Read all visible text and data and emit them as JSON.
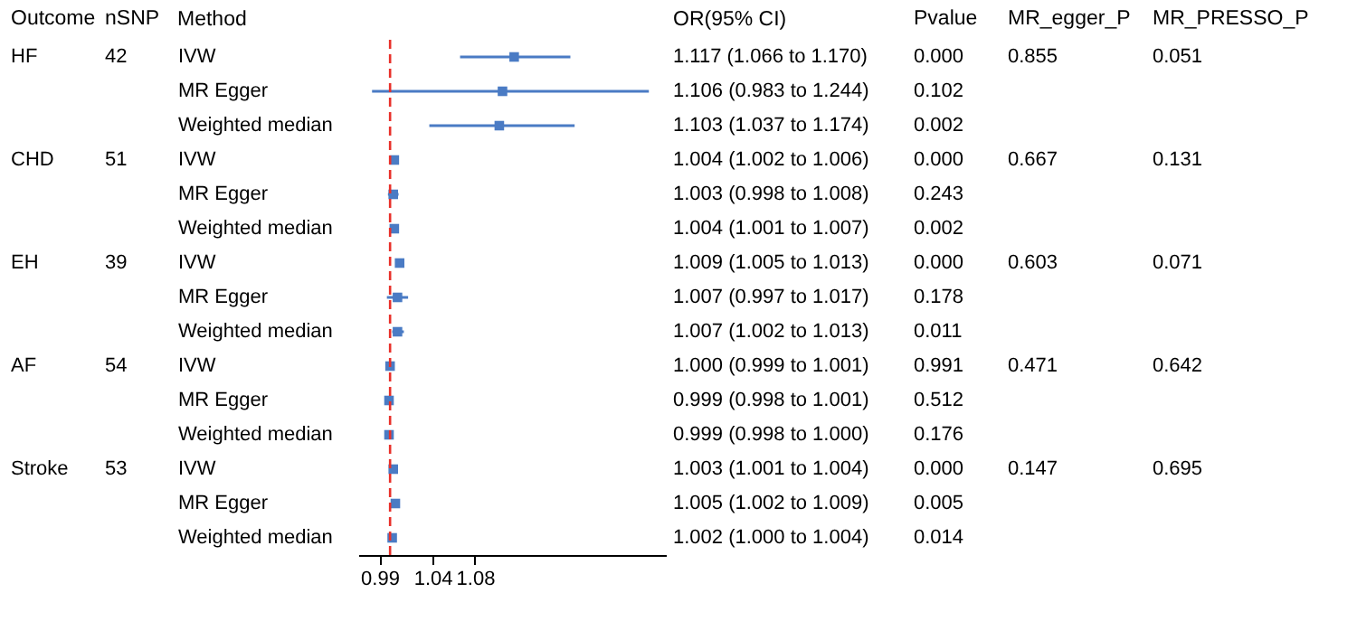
{
  "chart_data": [
    {
      "type": "other",
      "title": "Outcome",
      "annotations": [
        "HF",
        null,
        null,
        "CHD",
        null,
        null,
        "EH",
        null,
        null,
        "AF",
        null,
        null,
        "Stroke",
        null,
        null
      ]
    },
    {
      "type": "other",
      "title": "nSNP",
      "annotations": [
        "42",
        null,
        null,
        "51",
        null,
        null,
        "39",
        null,
        null,
        "54",
        null,
        null,
        "53",
        null,
        null
      ]
    },
    {
      "type": "scatter",
      "ylabel": "Method",
      "orientation": "horizontal",
      "categories": [
        "IVW",
        "MR Egger",
        "Weighted median",
        "IVW",
        "MR Egger",
        "Weighted median",
        "IVW",
        "MR Egger",
        "Weighted median",
        "IVW",
        "MR Egger",
        "Weighted median",
        "IVW",
        "MR Egger",
        "Weighted median"
      ],
      "values": [
        1.117,
        1.106,
        1.103,
        1.004,
        1.003,
        1.004,
        1.009,
        1.007,
        1.007,
        1.0,
        0.999,
        0.999,
        1.003,
        1.005,
        1.002
      ],
      "errors": [
        [
          1.066,
          1.17
        ],
        [
          0.983,
          1.244
        ],
        [
          1.037,
          1.174
        ],
        [
          1.002,
          1.006
        ],
        [
          0.998,
          1.008
        ],
        [
          1.001,
          1.007
        ],
        [
          1.005,
          1.013
        ],
        [
          0.997,
          1.017
        ],
        [
          1.002,
          1.013
        ],
        [
          0.999,
          1.001
        ],
        [
          0.998,
          1.001
        ],
        [
          0.998,
          1.0
        ],
        [
          1.001,
          1.004
        ],
        [
          1.002,
          1.009
        ],
        [
          1.0,
          1.004
        ]
      ],
      "color": "#4a7bc4",
      "marker": "square",
      "xlim": [
        0.97,
        1.26
      ],
      "xticks": [
        0.99,
        1.04,
        1.08
      ],
      "ref_lines": [
        {
          "axis": "x",
          "value": 1,
          "color": "#e8302a",
          "line_style": "dashed"
        }
      ],
      "annotations": [
        "OR(95% CI)"
      ],
      "value_labels": [
        "1.117 (1.066 to 1.170)",
        "1.106 (0.983 to 1.244)",
        "1.103 (1.037 to 1.174)",
        "1.004 (1.002 to 1.006)",
        "1.003 (0.998 to 1.008)",
        "1.004 (1.001 to 1.007)",
        "1.009 (1.005 to 1.013)",
        "1.007 (0.997 to 1.017)",
        "1.007 (1.002 to 1.013)",
        "1.000 (0.999 to 1.001)",
        "0.999 (0.998 to 1.001)",
        "0.999 (0.998 to 1.000)",
        "1.003 (1.001 to 1.004)",
        "1.005 (1.002 to 1.009)",
        "1.002 (1.000 to 1.004)"
      ]
    },
    {
      "type": "other",
      "title": "Pvalue",
      "annotations": [
        "0.000",
        "0.102",
        "0.002",
        "0.000",
        "0.243",
        "0.002",
        "0.000",
        "0.178",
        "0.011",
        "0.991",
        "0.512",
        "0.176",
        "0.000",
        "0.005",
        "0.014"
      ]
    },
    {
      "type": "other",
      "title": "MR_egger_P",
      "annotations": [
        "0.855",
        null,
        null,
        "0.667",
        null,
        null,
        "0.603",
        null,
        null,
        "0.471",
        null,
        null,
        "0.147",
        null,
        null
      ]
    },
    {
      "type": "other",
      "title": "MR_PRESSO_P",
      "annotations": [
        "0.051",
        null,
        null,
        "0.131",
        null,
        null,
        "0.071",
        null,
        null,
        "0.642",
        null,
        null,
        "0.695",
        null,
        null
      ]
    }
  ]
}
